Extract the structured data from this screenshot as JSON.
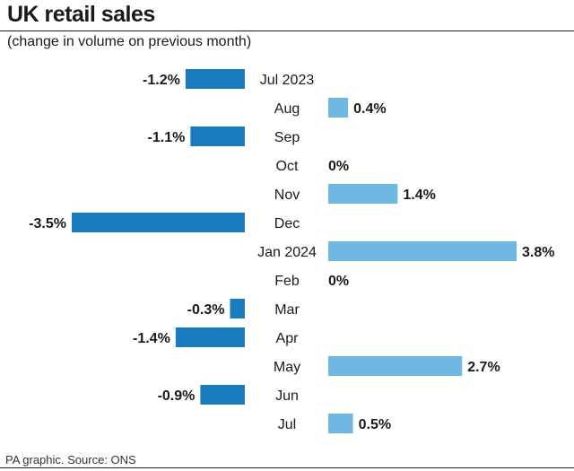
{
  "header": {
    "title": "UK retail sales",
    "subtitle": "(change in volume on previous month)"
  },
  "footer": {
    "source": "PA graphic. Source: ONS"
  },
  "colors": {
    "negative": "#1b7bbf",
    "positive": "#6fb8e2",
    "text": "#1a1a1a"
  },
  "chart_data": {
    "type": "bar",
    "orientation": "horizontal",
    "title": "UK retail sales",
    "subtitle": "(change in volume on previous month)",
    "xlabel": "",
    "ylabel": "",
    "unit": "%",
    "grid": false,
    "legend": "none",
    "xlim": [
      -3.5,
      3.8
    ],
    "categories": [
      "Jul 2023",
      "Aug",
      "Sep",
      "Oct",
      "Nov",
      "Dec",
      "Jan 2024",
      "Feb",
      "Mar",
      "Apr",
      "May",
      "Jun",
      "Jul"
    ],
    "values": [
      -1.2,
      0.4,
      -1.1,
      0,
      1.4,
      -3.5,
      3.8,
      0,
      -0.3,
      -1.4,
      2.7,
      -0.9,
      0.5
    ],
    "value_labels": [
      "-1.2%",
      "0.4%",
      "-1.1%",
      "0%",
      "1.4%",
      "-3.5%",
      "3.8%",
      "0%",
      "-0.3%",
      "-1.4%",
      "2.7%",
      "-0.9%",
      "0.5%"
    ]
  }
}
